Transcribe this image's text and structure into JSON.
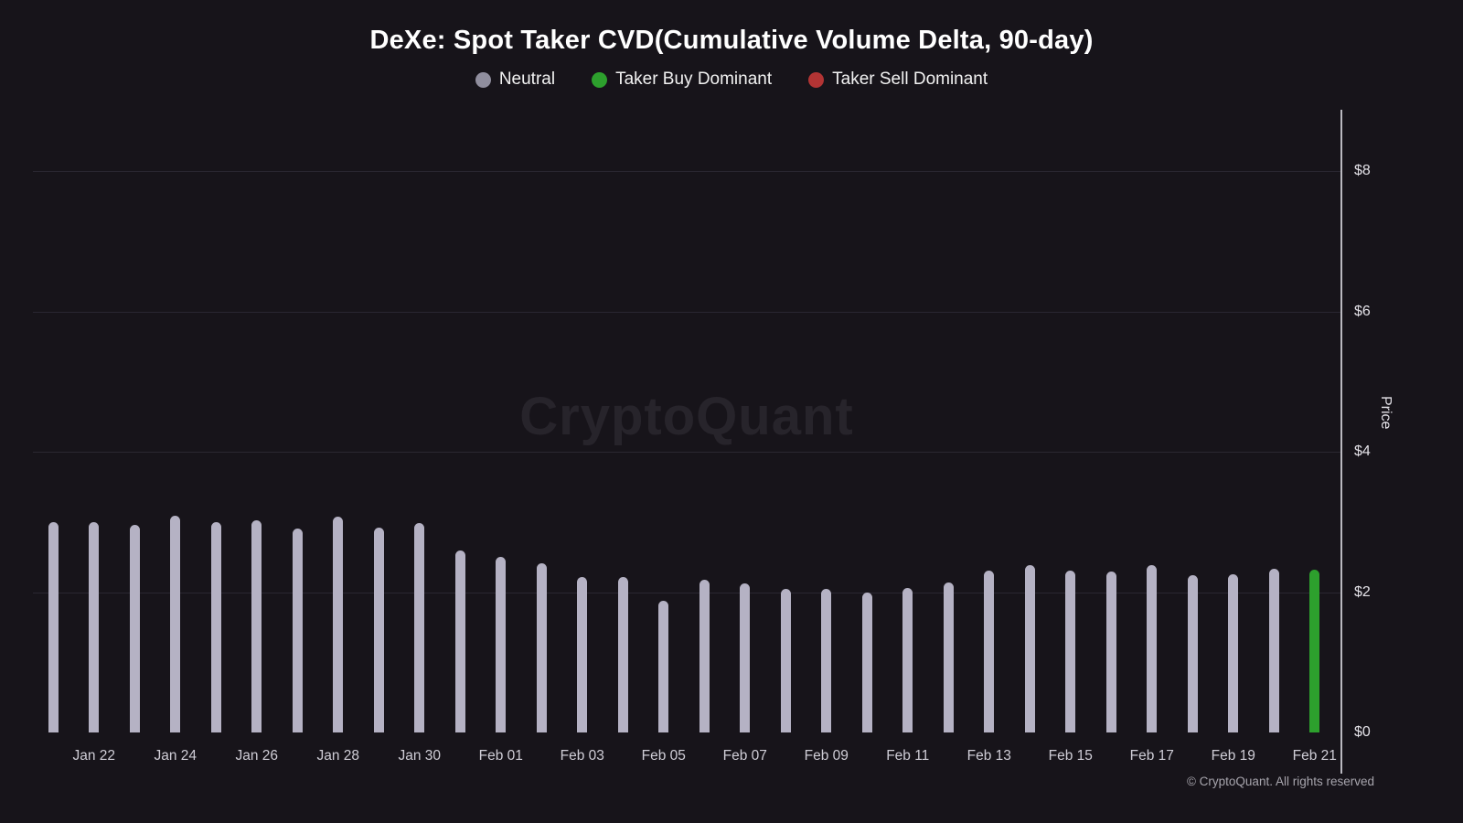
{
  "title": "DeXe: Spot Taker CVD(Cumulative Volume Delta, 90-day)",
  "watermark": "CryptoQuant",
  "footer": "© CryptoQuant. All rights reserved",
  "legend": [
    {
      "label": "Neutral",
      "color": "#908e9e"
    },
    {
      "label": "Taker Buy Dominant",
      "color": "#2da02d"
    },
    {
      "label": "Taker Sell Dominant",
      "color": "#b23434"
    }
  ],
  "y_axis": {
    "label": "Price",
    "ticks": [
      "$0",
      "$2",
      "$4",
      "$6",
      "$8"
    ],
    "tick_values": [
      0,
      2,
      4,
      6,
      8
    ]
  },
  "chart_data": {
    "type": "bar",
    "title": "DeXe: Spot Taker CVD(Cumulative Volume Delta, 90-day)",
    "ylabel": "Price",
    "ylim": [
      0,
      8.87
    ],
    "grid": true,
    "legend_position": "top",
    "x": [
      "Jan 21",
      "Jan 22",
      "Jan 23",
      "Jan 24",
      "Jan 25",
      "Jan 26",
      "Jan 27",
      "Jan 28",
      "Jan 29",
      "Jan 30",
      "Jan 31",
      "Feb 01",
      "Feb 02",
      "Feb 03",
      "Feb 04",
      "Feb 05",
      "Feb 06",
      "Feb 07",
      "Feb 08",
      "Feb 09",
      "Feb 10",
      "Feb 11",
      "Feb 12",
      "Feb 13",
      "Feb 14",
      "Feb 15",
      "Feb 16",
      "Feb 17",
      "Feb 18",
      "Feb 19",
      "Feb 20",
      "Feb 21"
    ],
    "values": [
      3.0,
      3.0,
      2.96,
      3.09,
      3.0,
      3.02,
      2.9,
      3.08,
      2.92,
      2.99,
      2.59,
      2.5,
      2.41,
      2.21,
      2.22,
      1.88,
      2.18,
      2.12,
      2.04,
      2.05,
      2.0,
      2.06,
      2.14,
      2.31,
      2.39,
      2.31,
      2.29,
      2.38,
      2.24,
      2.26,
      2.33,
      2.32
    ],
    "states": [
      "neutral",
      "neutral",
      "neutral",
      "neutral",
      "neutral",
      "neutral",
      "neutral",
      "neutral",
      "neutral",
      "neutral",
      "neutral",
      "neutral",
      "neutral",
      "neutral",
      "neutral",
      "neutral",
      "neutral",
      "neutral",
      "neutral",
      "neutral",
      "neutral",
      "neutral",
      "neutral",
      "neutral",
      "neutral",
      "neutral",
      "neutral",
      "neutral",
      "neutral",
      "neutral",
      "neutral",
      "buy"
    ],
    "state_colors": {
      "neutral": "#b5b2c4",
      "buy": "#2da02d",
      "sell": "#b23434"
    },
    "x_tick_labels": [
      "Jan 22",
      "Jan 24",
      "Jan 26",
      "Jan 28",
      "Jan 30",
      "Feb 01",
      "Feb 03",
      "Feb 05",
      "Feb 07",
      "Feb 09",
      "Feb 11",
      "Feb 13",
      "Feb 15",
      "Feb 17",
      "Feb 19",
      "Feb 21"
    ]
  }
}
